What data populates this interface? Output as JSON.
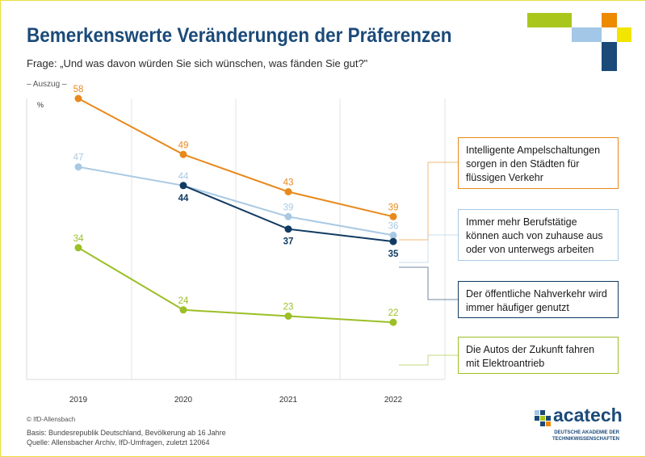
{
  "header": {
    "title": "Bemerkenswerte Veränderungen der Präferenzen",
    "question": "Frage: „Und was davon würden Sie sich wünschen, was fänden Sie gut?\"",
    "excerpt": "– Auszug –"
  },
  "colors": {
    "orange": "#e8891c",
    "lightblue": "#a9c9e3",
    "darkblue": "#113a62",
    "green": "#9bbf26",
    "title": "#1b4a79",
    "yellow": "#f2e500"
  },
  "chart_data": {
    "type": "line",
    "x": [
      "2019",
      "2020",
      "2021",
      "2022"
    ],
    "ylabel": "%",
    "ylim": [
      20,
      60
    ],
    "grid": "vertical",
    "series": [
      {
        "name": "Intelligente Ampelschaltungen sorgen in den Städten für flüssigen Verkehr",
        "color": "#e8891c",
        "x": [
          "2019",
          "2020",
          "2021",
          "2022"
        ],
        "values": [
          58,
          49,
          43,
          39
        ],
        "label_pos": "above"
      },
      {
        "name": "Immer mehr Berufstätige können auch von zuhause aus oder von unterwegs arbeiten",
        "color": "#a9c9e3",
        "x": [
          "2019",
          "2020",
          "2021",
          "2022"
        ],
        "values": [
          47,
          44,
          39,
          36
        ],
        "label_pos": "above"
      },
      {
        "name": "Der öffentliche Nahverkehr wird immer häufiger genutzt",
        "color": "#113a62",
        "x": [
          "2020",
          "2021",
          "2022"
        ],
        "values": [
          44,
          37,
          35
        ],
        "label_pos": "below"
      },
      {
        "name": "Die Autos der Zukunft fahren mit Elektroantrieb",
        "color": "#9bbf26",
        "x": [
          "2019",
          "2020",
          "2021",
          "2022"
        ],
        "values": [
          34,
          24,
          23,
          22
        ],
        "label_pos": "above"
      }
    ]
  },
  "footer": {
    "copyright": "© IfD-Allensbach",
    "basis": "Basis: Bundesrepublik Deutschland, Bevölkerung ab 16 Jahre",
    "source": "Quelle: Allensbacher Archiv, IfD-Umfragen, zuletzt 12064"
  },
  "logo": {
    "word": "acatech",
    "sub1": "DEUTSCHE AKADEMIE DER",
    "sub2": "TECHNIKWISSENSCHAFTEN"
  }
}
